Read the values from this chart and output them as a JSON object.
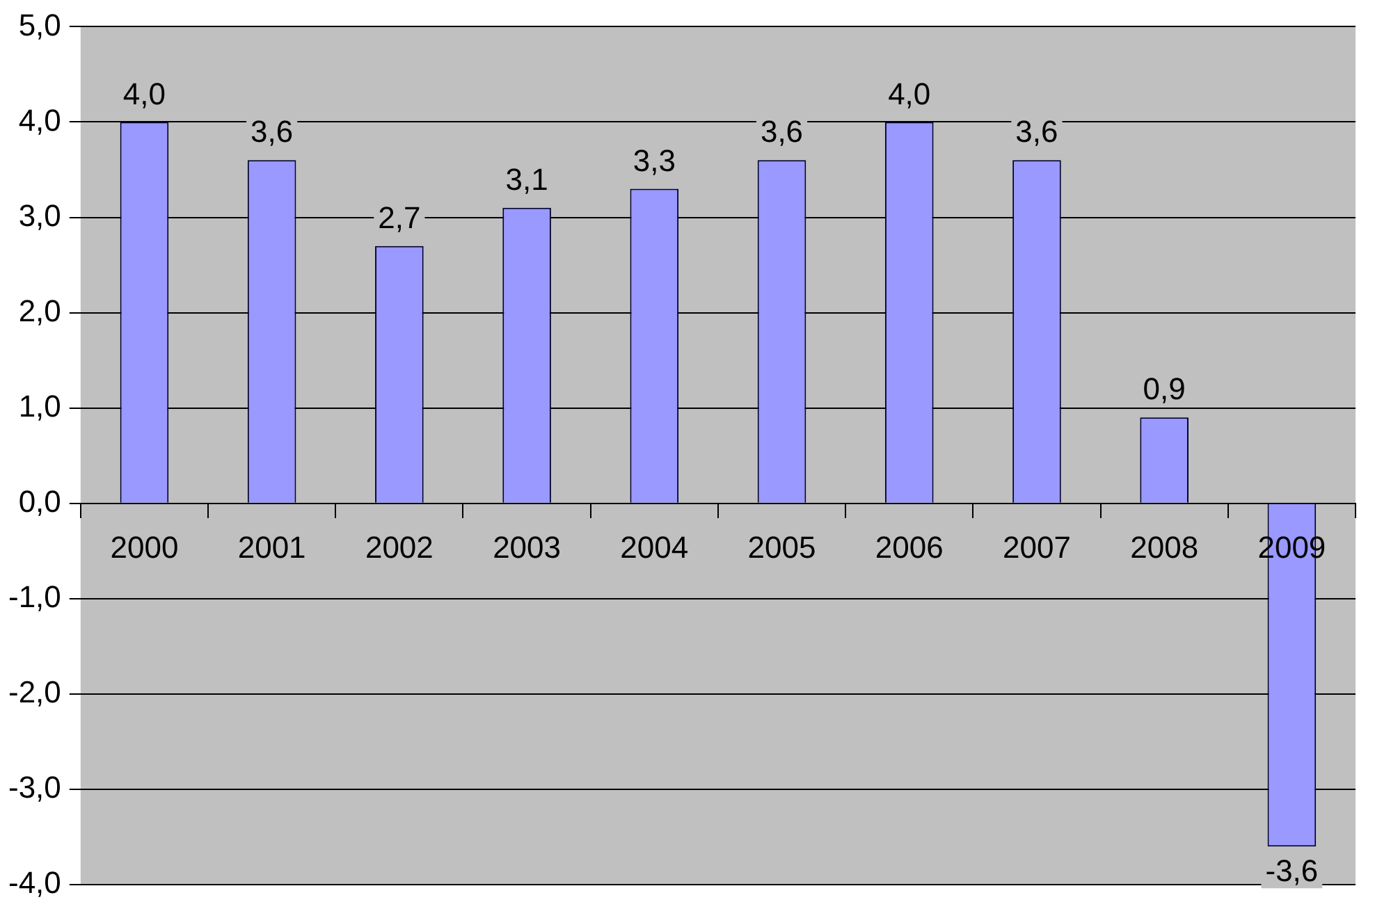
{
  "chart_data": {
    "type": "bar",
    "categories": [
      "2000",
      "2001",
      "2002",
      "2003",
      "2004",
      "2005",
      "2006",
      "2007",
      "2008",
      "2009"
    ],
    "values": [
      4.0,
      3.6,
      2.7,
      3.1,
      3.3,
      3.6,
      4.0,
      3.6,
      0.9,
      -3.6
    ],
    "value_labels": [
      "4,0",
      "3,6",
      "2,7",
      "3,1",
      "3,3",
      "3,6",
      "4,0",
      "3,6",
      "0,9",
      "-3,6"
    ],
    "color": "#9999ff",
    "ylim": [
      -4,
      5
    ],
    "yticks": [
      {
        "value": -4,
        "label": "-4,0"
      },
      {
        "value": -3,
        "label": "-3,0"
      },
      {
        "value": -2,
        "label": "-2,0"
      },
      {
        "value": -1,
        "label": "-1,0"
      },
      {
        "value": 0,
        "label": "0,0"
      },
      {
        "value": 1,
        "label": "1,0"
      },
      {
        "value": 2,
        "label": "2,0"
      },
      {
        "value": 3,
        "label": "3,0"
      },
      {
        "value": 4,
        "label": "4,0"
      },
      {
        "value": 5,
        "label": "5,0"
      }
    ],
    "grid": "y",
    "legend": false
  }
}
